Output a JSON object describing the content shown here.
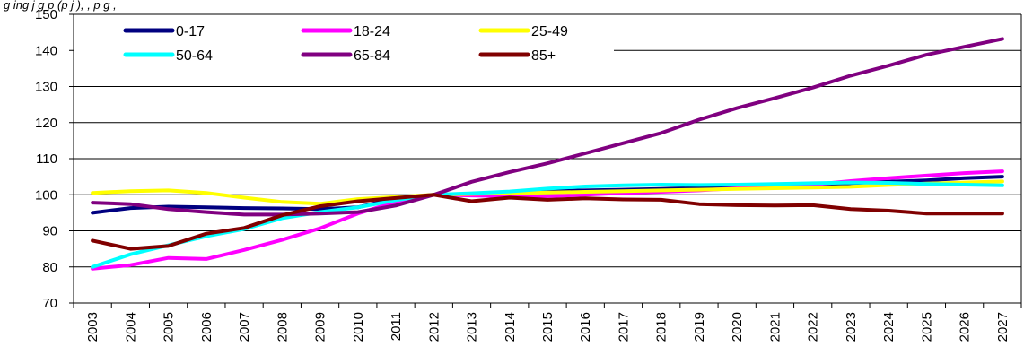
{
  "caption": "g    ing   j  g  p  (p  j   ),        ,  p g                ,",
  "chart_data": {
    "type": "line",
    "title": "",
    "xlabel": "",
    "ylabel": "",
    "ylim": [
      70,
      150
    ],
    "yticks": [
      "70",
      "80",
      "90",
      "100",
      "110",
      "120",
      "130",
      "140",
      "150"
    ],
    "grid": "horizontal",
    "legend_position": "top-left",
    "categories": [
      "2003",
      "2004",
      "2005",
      "2006",
      "2007",
      "2008",
      "2009",
      "2010",
      "2011",
      "2012",
      "2013",
      "2014",
      "2015",
      "2016",
      "2017",
      "2018",
      "2019",
      "2020",
      "2021",
      "2022",
      "2023",
      "2024",
      "2025",
      "2026",
      "2027"
    ],
    "series": [
      {
        "name": "0-17",
        "color": "#000080",
        "values": [
          95,
          96.3,
          96.7,
          96.5,
          96.3,
          96.2,
          96,
          96.5,
          99,
          100,
          100.2,
          100.6,
          101,
          101.2,
          101.4,
          101.6,
          101.9,
          102.2,
          102.5,
          102.8,
          103.2,
          103.6,
          104,
          104.6,
          105
        ]
      },
      {
        "name": "18-24",
        "color": "#ff00ff",
        "values": [
          79.5,
          80.5,
          82.5,
          82.2,
          84.7,
          87.5,
          90.7,
          94.8,
          98,
          100,
          99.8,
          99.6,
          99.6,
          100,
          100.5,
          100.8,
          101.2,
          101.8,
          102.3,
          102.8,
          103.8,
          104.6,
          105.3,
          106,
          106.5
        ]
      },
      {
        "name": "25-49",
        "color": "#ffff00",
        "values": [
          100.5,
          101,
          101.2,
          100.5,
          99.2,
          98,
          97.5,
          98.8,
          99.4,
          100,
          100.2,
          100.4,
          100.6,
          100.8,
          101,
          101.2,
          101.4,
          101.6,
          101.8,
          102,
          102.2,
          102.7,
          103.1,
          103.4,
          103.7
        ]
      },
      {
        "name": "50-64",
        "color": "#00ffff",
        "values": [
          80,
          83.5,
          86,
          88.5,
          90.5,
          93.5,
          95.2,
          96.5,
          98.5,
          100,
          100.4,
          100.9,
          101.7,
          102.3,
          102.6,
          102.8,
          102.7,
          102.8,
          103,
          103.2,
          103.4,
          103.3,
          103,
          102.8,
          102.6
        ]
      },
      {
        "name": "65-84",
        "color": "#800080",
        "values": [
          97.8,
          97.4,
          96,
          95.2,
          94.5,
          94.5,
          94.8,
          95.2,
          97,
          100,
          103.6,
          106.3,
          108.7,
          111.5,
          114.3,
          117.1,
          120.8,
          124,
          126.8,
          129.7,
          133,
          135.8,
          138.8,
          141,
          143.2
        ]
      },
      {
        "name": "85+",
        "color": "#800000",
        "values": [
          87.3,
          85,
          85.8,
          89.2,
          90.8,
          94.3,
          96.8,
          98.2,
          99.1,
          100,
          98.2,
          99.2,
          98.6,
          99,
          98.7,
          98.6,
          97.4,
          97.1,
          97,
          97.1,
          96,
          95.6,
          94.8,
          94.8,
          94.8
        ]
      }
    ]
  }
}
